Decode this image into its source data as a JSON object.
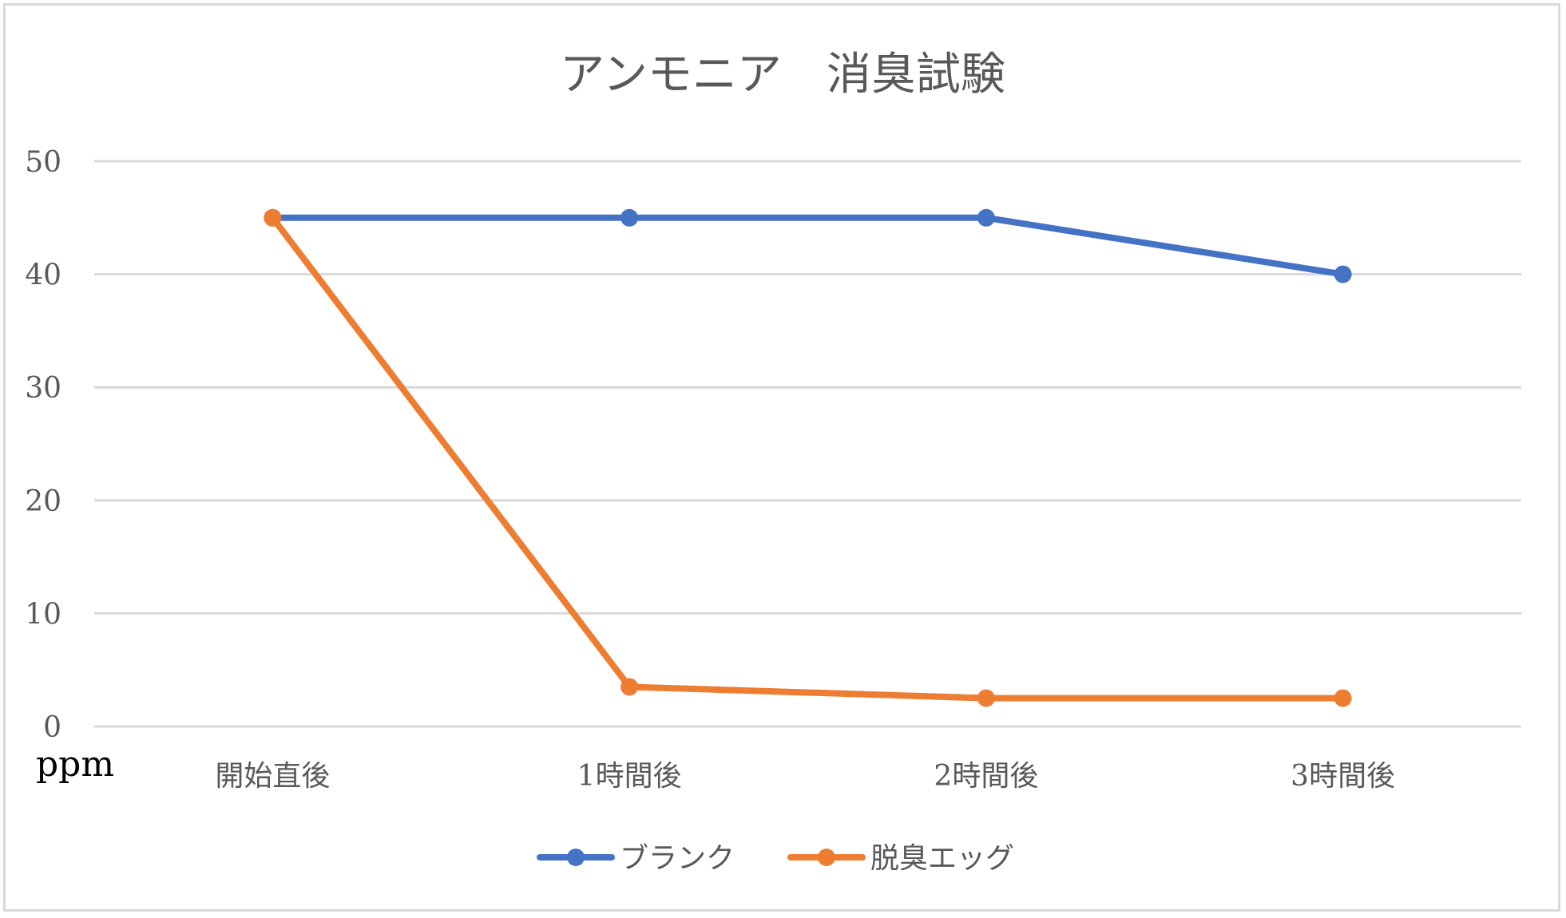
{
  "chart_data": {
    "type": "line",
    "title": "アンモニア　消臭試験",
    "categories": [
      "開始直後",
      "1時間後",
      "2時間後",
      "3時間後"
    ],
    "series": [
      {
        "name": "ブランク",
        "color": "#4472c4",
        "values": [
          45,
          45,
          45,
          40
        ]
      },
      {
        "name": "脱臭エッグ",
        "color": "#ed7d31",
        "values": [
          45,
          3.5,
          2.5,
          2.5
        ]
      }
    ],
    "ylim": [
      0,
      50
    ],
    "yticks": [
      "0",
      "10",
      "20",
      "30",
      "40",
      "50"
    ],
    "yunit": "ppm",
    "grid": true,
    "legend_position": "bottom"
  }
}
